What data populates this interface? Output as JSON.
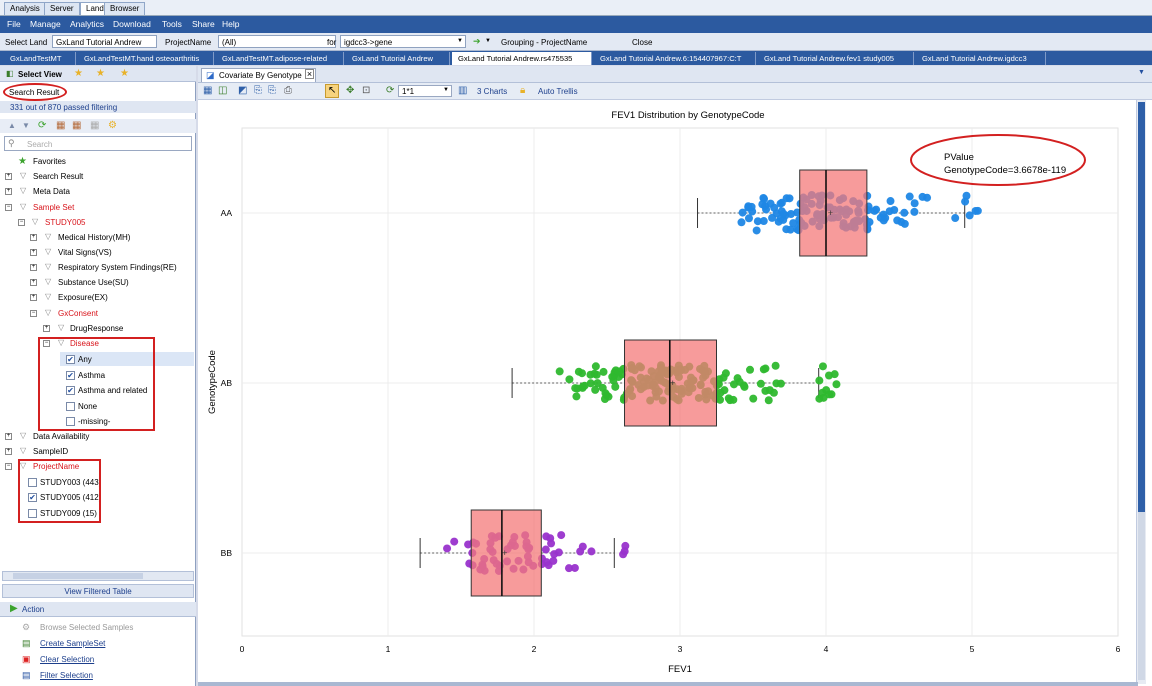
{
  "app_tabs": [
    "Analysis",
    "Server",
    "Land",
    "Browser"
  ],
  "menu": [
    "File",
    "Manage",
    "Analytics",
    "Download",
    "Tools",
    "Share",
    "Help"
  ],
  "toolbar": {
    "select_land_label": "Select Land",
    "land_value": "GxLand Tutorial Andrew",
    "project_label": "ProjectName",
    "project_value": "(All)",
    "for_label": "for",
    "gene_value": "igdcc3->gene",
    "grouping": "Grouping - ProjectName",
    "close_label": "Close"
  },
  "doc_tabs": [
    "GxLandTestMT",
    "GxLandTestMT.hand osteoarthritis",
    "GxLandTestMT.adipose-related",
    "GxLand Tutorial Andrew",
    "GxLand Tutorial Andrew.rs475535",
    "GxLand Tutorial Andrew.6:154407967:C:T",
    "GxLand Tutorial Andrew.fev1 study005",
    "GxLand Tutorial Andrew.igdcc3"
  ],
  "left": {
    "select_view": "Select View",
    "search_result_label": "Search Result",
    "filter_summary": "331 out of 870 passed filtering",
    "search_placeholder": "Search",
    "tree": [
      {
        "label": "Favorites"
      },
      {
        "label": "Search Result"
      },
      {
        "label": "Meta Data"
      },
      {
        "label": "Sample Set"
      },
      {
        "label": "STUDY005"
      },
      {
        "label": "Medical History(MH)"
      },
      {
        "label": "Vital Signs(VS)"
      },
      {
        "label": "Respiratory System Findings(RE)"
      },
      {
        "label": "Substance Use(SU)"
      },
      {
        "label": "Exposure(EX)"
      },
      {
        "label": "GxConsent"
      },
      {
        "label": "DrugResponse"
      },
      {
        "label": "Disease"
      },
      {
        "label": "Any"
      },
      {
        "label": "Asthma"
      },
      {
        "label": "Asthma and related"
      },
      {
        "label": "None"
      },
      {
        "label": "-missing-"
      },
      {
        "label": "Data Availability"
      },
      {
        "label": "SampleID"
      },
      {
        "label": "ProjectName"
      },
      {
        "label": "STUDY003 (443)"
      },
      {
        "label": "STUDY005 (412)"
      },
      {
        "label": "STUDY009 (15)"
      }
    ],
    "view_filtered_table": "View Filtered Table",
    "action_header": "Action",
    "actions": [
      "Browse Selected Samples",
      "Create SampleSet",
      "Clear Selection",
      "Filter Selection"
    ]
  },
  "content": {
    "tab_label": "Covariate By Genotype",
    "zoom_value": "1*1",
    "charts_label": "3 Charts",
    "auto_trellis": "Auto Trellis"
  },
  "chart_data": {
    "type": "box",
    "title": "FEV1 Distribution by GenotypeCode",
    "xlabel": "FEV1",
    "ylabel": "GenotypeCode",
    "xlim": [
      0,
      6
    ],
    "xticks": [
      "0",
      "1",
      "2",
      "3",
      "4",
      "5",
      "6"
    ],
    "categories": [
      "AA",
      "AB",
      "BB"
    ],
    "series": [
      {
        "name": "AA",
        "whisker_low": 3.12,
        "q1": 3.82,
        "median": 4.0,
        "q3": 4.28,
        "whisker_high": 4.95,
        "mean": 4.03,
        "color": "#1f87e5"
      },
      {
        "name": "AB",
        "whisker_low": 1.85,
        "q1": 2.62,
        "median": 2.93,
        "q3": 3.25,
        "whisker_high": 3.95,
        "mean": 2.95,
        "color": "#2eb82e"
      },
      {
        "name": "BB",
        "whisker_low": 1.22,
        "q1": 1.57,
        "median": 1.78,
        "q3": 2.05,
        "whisker_high": 2.55,
        "mean": 1.8,
        "color": "#9933cc"
      }
    ],
    "box_color": "#f47a7a",
    "annotation_label": "PValue",
    "annotation_value": "GenotypeCode=3.6678e-119"
  }
}
